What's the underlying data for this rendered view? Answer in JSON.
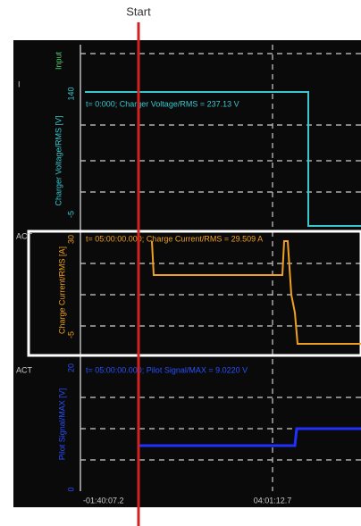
{
  "annotation": {
    "start": "Start"
  },
  "panels": [
    {
      "channel": "Input",
      "top": "140",
      "bottom": "-5",
      "axis_label": "Charger Voltage/RMS [V]",
      "readout": "t= 0:000; Charger Voltage/RMS = 237.13 V",
      "side_tag": "I"
    },
    {
      "top": "30",
      "bottom": "-5",
      "axis_label": "Charge Current/RMS [A]",
      "readout": "t= 05:00:00.000; Charge Current/RMS = 29.509 A",
      "side_tag": "ACT"
    },
    {
      "top": "20",
      "bottom": "0",
      "axis_label": "Pilot Signal/MAX [V]",
      "readout": "t= 05:00:00.000; Pilot Signal/MAX = 9.0220 V",
      "side_tag": "ACT"
    }
  ],
  "time_axis": [
    "-01:40:07.2",
    "04:01:12.7"
  ]
}
